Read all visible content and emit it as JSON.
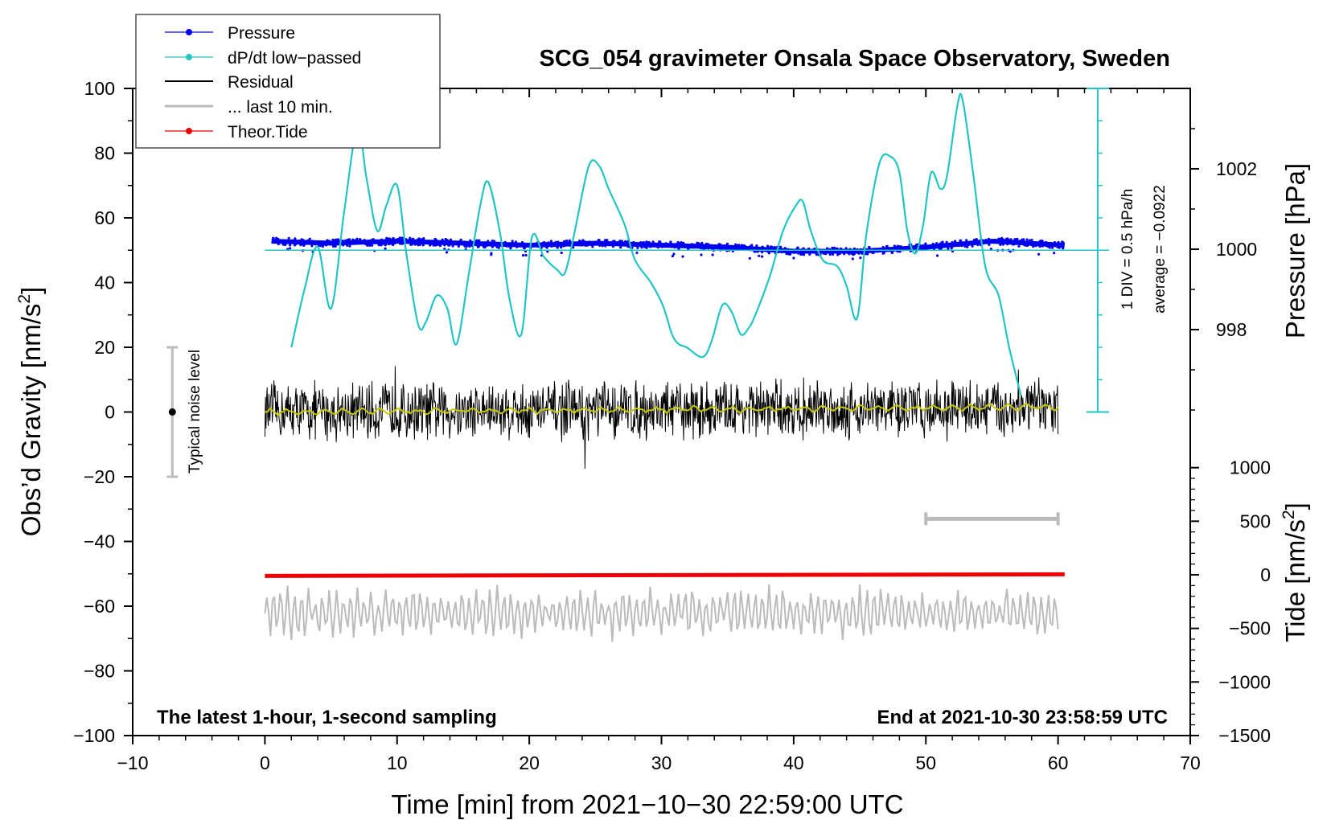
{
  "chart_data": {
    "type": "line",
    "title": "SCG_054 gravimeter Onsala Space Observatory, Sweden",
    "annotation_left": "The latest 1-hour, 1-second sampling",
    "annotation_right": "End at 2021-10-30 23:58:59 UTC",
    "xlabel": "Time [min] from 2021−10−30 22:59:00 UTC",
    "ylabel_left": "Obs’d Gravity [nm/s",
    "ylabel_right_pressure": "Pressure [hPa]",
    "ylabel_right_tide": "Tide [nm/s",
    "units_superscript": "2",
    "units_close": "]",
    "xlim": [
      -10,
      70
    ],
    "ylim": [
      -100,
      100
    ],
    "x_ticks": [
      "−10",
      "0",
      "10",
      "20",
      "30",
      "40",
      "50",
      "60",
      "70"
    ],
    "y_ticks": [
      "−100",
      "−80",
      "−60",
      "−40",
      "−20",
      "0",
      "20",
      "40",
      "60",
      "80",
      "100"
    ],
    "pressure_axis": {
      "ticks": [
        "998",
        "1000",
        "1002"
      ],
      "tick_values": [
        998,
        1000,
        1002
      ],
      "note_div": "1 DIV = 0.5 hPa/h",
      "note_average": "average = −0.0922"
    },
    "tide_axis": {
      "ticks": [
        "−1500",
        "−1000",
        "−500",
        "0",
        "500",
        "1000"
      ],
      "tick_values": [
        -1500,
        -1000,
        -500,
        0,
        500,
        1000
      ]
    },
    "noise_label": "Typical noise level",
    "noise_range": [
      -20,
      20
    ],
    "noise_x": -7,
    "last10_bar_x": [
      50,
      60
    ],
    "legend": [
      {
        "label": "Pressure",
        "color": "#0000ee",
        "marker": "dot"
      },
      {
        "label": "dP/dt low−passed",
        "color": "#22c4c4",
        "marker": "dot"
      },
      {
        "label": "Residual",
        "color": "#000000",
        "marker": "none"
      },
      {
        "label": "... last 10 min.",
        "color": "#bbbbbb",
        "marker": "none"
      },
      {
        "label": "Theor.Tide",
        "color": "#ee0000",
        "marker": "dot"
      }
    ],
    "series": [
      {
        "name": "Pressure",
        "color": "#0000ee",
        "unit": "hPa",
        "x": [
          0.5,
          5,
          10,
          15,
          20,
          25,
          30,
          35,
          40,
          45,
          50,
          55,
          60.5
        ],
        "values": [
          1000.2,
          1000.15,
          1000.2,
          1000.15,
          1000.1,
          1000.15,
          1000.1,
          1000.05,
          999.95,
          999.95,
          1000.05,
          1000.2,
          1000.1
        ]
      },
      {
        "name": "dP/dt low-passed",
        "color": "#22c4c4",
        "baseline_y": 50,
        "x": [
          2,
          3,
          4,
          5,
          6,
          7,
          7.7,
          8.5,
          9.2,
          10,
          10.7,
          11.6,
          12.2,
          13,
          13.8,
          14.5,
          15.4,
          16.3,
          16.9,
          17.8,
          18.5,
          19.4,
          20.2,
          21.1,
          22.1,
          22.7,
          23.4,
          24.5,
          25.3,
          26,
          27.2,
          28,
          29.2,
          30.1,
          30.8,
          31.3,
          31.9,
          33.1,
          33.8,
          34.6,
          35.3,
          36,
          36.6,
          37.1,
          38.2,
          39.2,
          40.2,
          40.7,
          41.3,
          42.2,
          43.3,
          44,
          44.8,
          45.5,
          46.5,
          47.3,
          48,
          48.6,
          49.2,
          49.8,
          50.4,
          51.1,
          51.6,
          52.4,
          52.8,
          53.6,
          54.5,
          55.5,
          56.3,
          57.2
        ],
        "values": [
          20,
          38,
          51,
          32,
          62,
          88,
          72,
          56,
          64,
          70,
          49,
          27,
          28,
          36,
          32,
          21,
          42,
          64,
          71,
          55,
          35,
          24,
          54,
          48,
          44,
          43,
          55,
          76,
          76,
          69,
          58,
          47,
          40,
          33,
          24,
          21,
          20,
          17,
          22,
          33,
          31,
          24,
          26,
          30,
          42,
          56,
          64,
          65,
          56,
          47,
          45,
          39,
          29,
          55,
          77,
          79,
          74,
          56,
          49,
          58,
          74,
          69,
          73,
          95,
          96,
          73,
          45,
          36,
          20,
          5
        ]
      },
      {
        "name": "Residual",
        "color": "#000000",
        "smoothed_color": "#c8c800",
        "x_range": [
          0,
          60
        ],
        "amplitude": 9
      },
      {
        "name": "... last 10 min.",
        "color": "#bbbbbb",
        "x_range": [
          0,
          60
        ],
        "center": -62,
        "amplitude": 6
      },
      {
        "name": "Theor.Tide",
        "color": "#ee0000",
        "unit": "nm/s2",
        "x": [
          0,
          60.5
        ],
        "values": [
          -10,
          5
        ]
      }
    ]
  }
}
